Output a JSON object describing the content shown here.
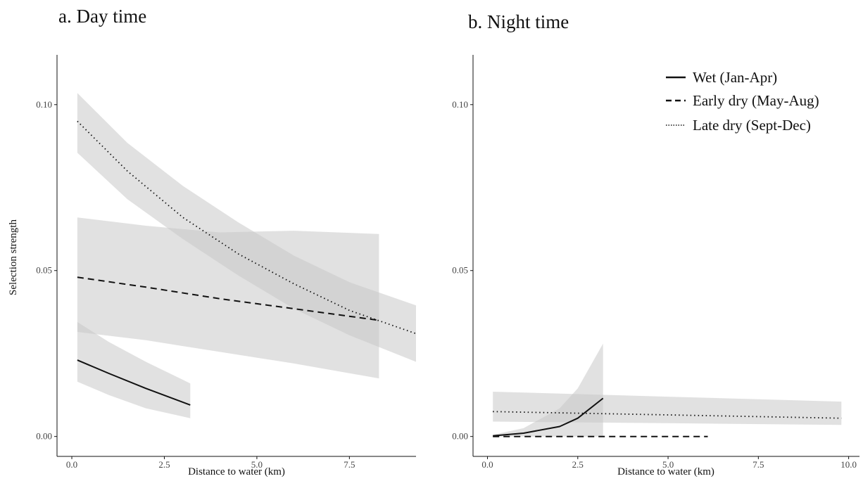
{
  "chart_data": [
    {
      "type": "line",
      "title": "a. Day time",
      "xlabel": "Distance to water (km)",
      "ylabel": "Selection strength",
      "xlim": [
        -0.4,
        9.3
      ],
      "ylim": [
        -0.006,
        0.115
      ],
      "xticks": [
        "0.0",
        "2.5",
        "5.0",
        "7.5"
      ],
      "yticks": [
        "0.00",
        "0.05",
        "0.10"
      ],
      "grid": false,
      "series": [
        {
          "name": "Wet (Jan-Apr)",
          "style": "solid",
          "x": [
            0.15,
            1.0,
            2.0,
            3.2
          ],
          "y": [
            0.023,
            0.019,
            0.0145,
            0.0095
          ],
          "lower": [
            0.0165,
            0.0125,
            0.0085,
            0.0055
          ],
          "upper": [
            0.0345,
            0.0285,
            0.0225,
            0.016
          ]
        },
        {
          "name": "Early dry (May-Aug)",
          "style": "dashed",
          "x": [
            0.15,
            2.0,
            4.0,
            6.0,
            8.3
          ],
          "y": [
            0.048,
            0.045,
            0.0415,
            0.0385,
            0.035
          ],
          "lower": [
            0.0315,
            0.029,
            0.0255,
            0.022,
            0.0175
          ],
          "upper": [
            0.066,
            0.0635,
            0.0615,
            0.062,
            0.061
          ]
        },
        {
          "name": "Late dry (Sept-Dec)",
          "style": "dotted",
          "x": [
            0.15,
            1.5,
            3.0,
            4.5,
            6.0,
            7.5,
            9.3
          ],
          "y": [
            0.095,
            0.08,
            0.066,
            0.055,
            0.046,
            0.038,
            0.031
          ],
          "lower": [
            0.0855,
            0.0715,
            0.0595,
            0.0485,
            0.0385,
            0.0305,
            0.0225
          ],
          "upper": [
            0.1035,
            0.0885,
            0.0755,
            0.0645,
            0.0545,
            0.0465,
            0.0395
          ]
        }
      ]
    },
    {
      "type": "line",
      "title": "b. Night time",
      "xlabel": "Distance to water (km)",
      "ylabel": "",
      "xlim": [
        -0.4,
        10.3
      ],
      "ylim": [
        -0.006,
        0.115
      ],
      "xticks": [
        "0.0",
        "2.5",
        "5.0",
        "7.5",
        "10.0"
      ],
      "yticks": [
        "0.00",
        "0.05",
        "0.10"
      ],
      "grid": false,
      "legend": {
        "position": "top-right",
        "entries": [
          {
            "label": "Wet (Jan-Apr)",
            "style": "solid"
          },
          {
            "label": "Early dry (May-Aug)",
            "style": "dashed"
          },
          {
            "label": "Late dry (Sept-Dec)",
            "style": "dotted"
          }
        ]
      },
      "series": [
        {
          "name": "Wet (Jan-Apr)",
          "style": "solid",
          "x": [
            0.15,
            1.0,
            2.0,
            2.5,
            3.2
          ],
          "y": [
            0.0002,
            0.001,
            0.003,
            0.0055,
            0.0115
          ],
          "lower": [
            0.0,
            0.0,
            0.0,
            0.0,
            0.0
          ],
          "upper": [
            0.0005,
            0.0025,
            0.0085,
            0.0145,
            0.028
          ]
        },
        {
          "name": "Early dry (May-Aug)",
          "style": "dashed",
          "x": [
            0.15,
            6.1
          ],
          "y": [
            0.0,
            0.0
          ],
          "lower": [
            0.0,
            0.0
          ],
          "upper": [
            0.0,
            0.0
          ]
        },
        {
          "name": "Late dry (Sept-Dec)",
          "style": "dotted",
          "x": [
            0.15,
            5.0,
            9.8
          ],
          "y": [
            0.0075,
            0.0065,
            0.0055
          ],
          "lower": [
            0.0045,
            0.004,
            0.0035
          ],
          "upper": [
            0.0135,
            0.012,
            0.0105
          ]
        }
      ]
    }
  ],
  "colors": {
    "band": "#c8c8c8",
    "line": "#111111",
    "axis": "#111111"
  }
}
